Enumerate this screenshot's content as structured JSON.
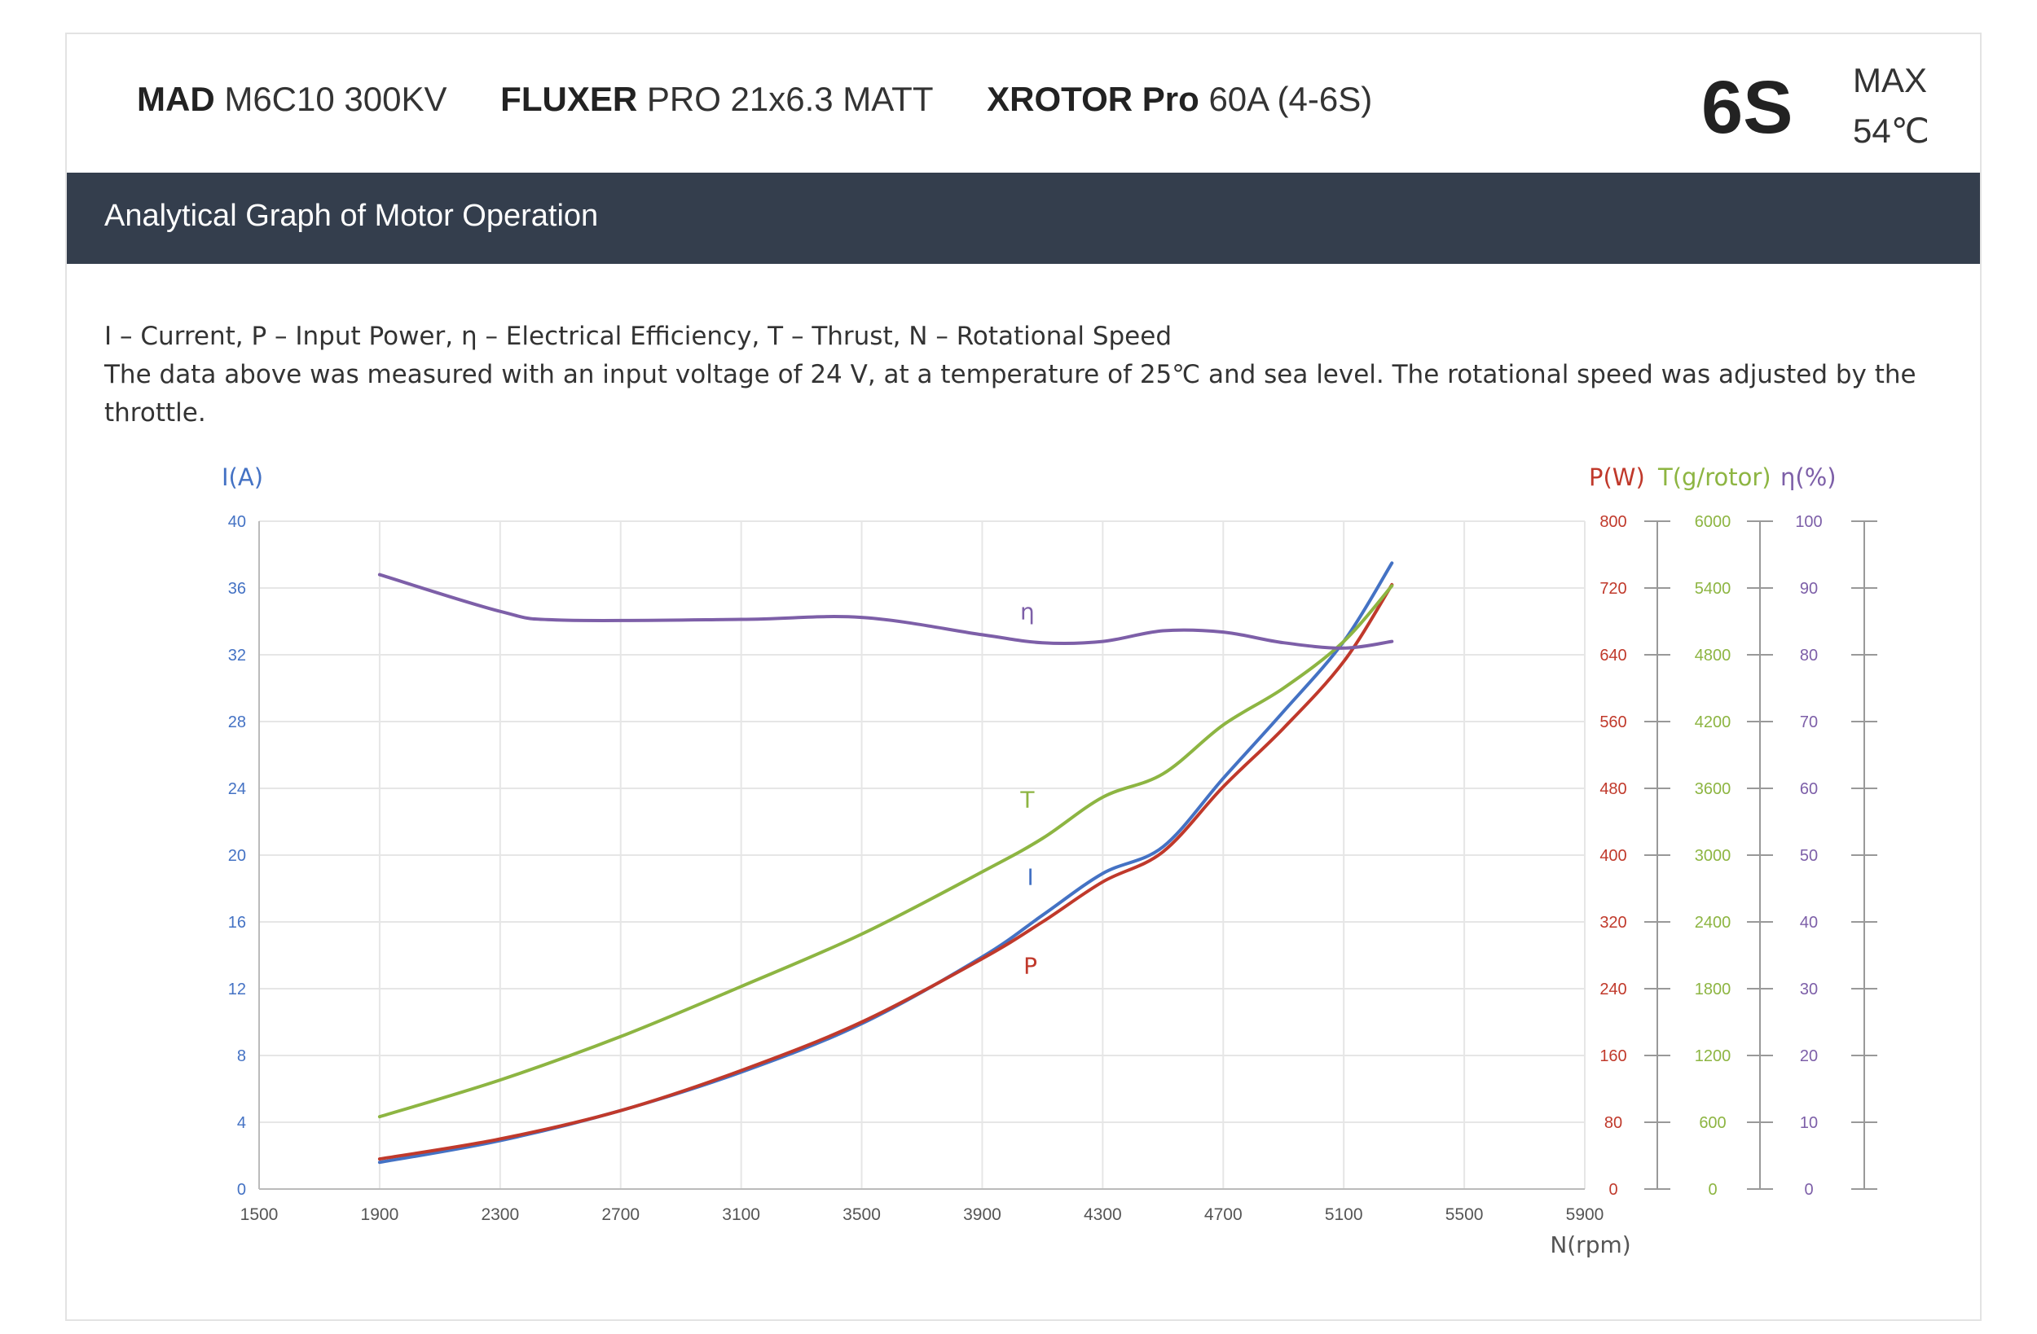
{
  "header": {
    "products": [
      {
        "brand": "MAD",
        "model": "M6C10 300KV"
      },
      {
        "brand": "FLUXER",
        "model": "PRO 21x6.3 MATT"
      },
      {
        "brand": "XROTOR Pro",
        "model": "60A (4-6S)"
      }
    ],
    "cells": "6S",
    "max_label": "MAX",
    "max_temp": "54℃"
  },
  "banner": {
    "title": "Analytical Graph of Motor Operation"
  },
  "notes": {
    "legend_line": "I – Current, P – Input Power, η – Electrical Efficiency, T – Thrust,   N – Rotational Speed",
    "conditions_line": "The data above was measured with an input voltage of 24 V, at a temperature of 25℃ and sea level. The rotational speed was adjusted by the throttle."
  },
  "colors": {
    "I": "#4472c4",
    "P": "#c0392b",
    "T": "#8db542",
    "eta": "#7d5fa8",
    "grid": "#e6e6e6",
    "axis": "#bbbbbb"
  },
  "chart_data": {
    "type": "line",
    "xlabel": "N(rpm)",
    "x_ticks": [
      1500,
      1900,
      2300,
      2700,
      3100,
      3500,
      3900,
      4300,
      4700,
      5100,
      5500,
      5900
    ],
    "xlim": [
      1500,
      5900
    ],
    "axes": [
      {
        "id": "I",
        "label": "I(A)",
        "side": "left",
        "ylim": [
          0,
          40
        ],
        "ticks": [
          0,
          4,
          8,
          12,
          16,
          20,
          24,
          28,
          32,
          36,
          40
        ],
        "color": "#4472c4"
      },
      {
        "id": "P",
        "label": "P(W)",
        "side": "right",
        "ylim": [
          0,
          800
        ],
        "ticks": [
          0,
          80,
          160,
          240,
          320,
          400,
          480,
          560,
          640,
          720,
          800
        ],
        "color": "#c0392b"
      },
      {
        "id": "T",
        "label": "T(g/rotor)",
        "side": "right",
        "ylim": [
          0,
          6000
        ],
        "ticks": [
          0,
          600,
          1200,
          1800,
          2400,
          3000,
          3600,
          4200,
          4800,
          5400,
          6000
        ],
        "color": "#8db542"
      },
      {
        "id": "eta",
        "label": "η(%)",
        "side": "right",
        "ylim": [
          0,
          100
        ],
        "ticks": [
          0,
          10,
          20,
          30,
          40,
          50,
          60,
          70,
          80,
          90,
          100
        ],
        "color": "#7d5fa8"
      }
    ],
    "series": [
      {
        "name": "I",
        "axis": "I",
        "color": "#4472c4",
        "x": [
          1900,
          2300,
          2700,
          3100,
          3500,
          3900,
          4100,
          4300,
          4500,
          4700,
          4900,
          5100,
          5260
        ],
        "y": [
          1.6,
          2.9,
          4.7,
          7.0,
          9.9,
          13.9,
          16.4,
          18.9,
          20.5,
          24.6,
          28.6,
          32.8,
          37.5
        ]
      },
      {
        "name": "P",
        "axis": "P",
        "color": "#c0392b",
        "x": [
          1900,
          2300,
          2700,
          3100,
          3500,
          3900,
          4100,
          4300,
          4500,
          4700,
          4900,
          5100,
          5260
        ],
        "y": [
          36,
          60,
          94,
          142,
          200,
          276,
          320,
          368,
          404,
          482,
          552,
          632,
          724
        ]
      },
      {
        "name": "T",
        "axis": "T",
        "color": "#8db542",
        "x": [
          1900,
          2300,
          2700,
          3100,
          3500,
          3900,
          4100,
          4300,
          4500,
          4700,
          4900,
          5100,
          5260
        ],
        "y": [
          650,
          980,
          1370,
          1820,
          2290,
          2850,
          3150,
          3520,
          3730,
          4170,
          4500,
          4920,
          5420
        ]
      },
      {
        "name": "η",
        "axis": "eta",
        "color": "#7d5fa8",
        "x": [
          1900,
          2300,
          2500,
          3100,
          3500,
          3900,
          4100,
          4300,
          4500,
          4700,
          4900,
          5100,
          5260
        ],
        "y": [
          92.0,
          86.5,
          85.2,
          85.3,
          85.6,
          83.0,
          81.8,
          82.0,
          83.6,
          83.4,
          81.8,
          81.0,
          82.0
        ]
      }
    ],
    "annotations": [
      {
        "text": "η",
        "x": 4050,
        "y_axis": "eta",
        "y": 86.5
      },
      {
        "text": "T",
        "x": 4050,
        "y_axis": "T",
        "y": 3500
      },
      {
        "text": "I",
        "x": 4060,
        "y_axis": "I",
        "y": 18.7
      },
      {
        "text": "P",
        "x": 4060,
        "y_axis": "P",
        "y": 268
      }
    ]
  }
}
